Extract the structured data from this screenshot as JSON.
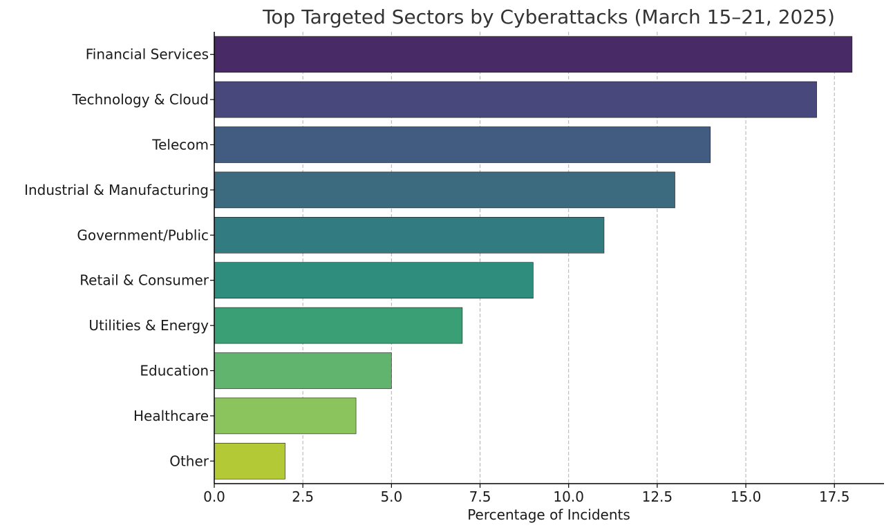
{
  "chart_data": {
    "type": "bar",
    "orientation": "horizontal",
    "title": "Top Targeted Sectors by Cyberattacks (March 15–21, 2025)",
    "xlabel": "Percentage of Incidents",
    "ylabel": "",
    "xlim": [
      0,
      18.9
    ],
    "xticks": [
      "0.0",
      "2.5",
      "5.0",
      "7.5",
      "10.0",
      "12.5",
      "15.0",
      "17.5"
    ],
    "grid": "vertical-dashed",
    "categories": [
      "Financial Services",
      "Technology & Cloud",
      "Telecom",
      "Industrial & Manufacturing",
      "Government/Public",
      "Retail & Consumer",
      "Utilities & Energy",
      "Education",
      "Healthcare",
      "Other"
    ],
    "values": [
      18,
      17,
      14,
      13,
      11,
      9,
      7,
      5,
      4,
      2
    ],
    "colors": [
      "#472a66",
      "#48487d",
      "#425b81",
      "#3c6b80",
      "#327b80",
      "#2f8d7e",
      "#3b9f76",
      "#60b46e",
      "#8bc35c",
      "#b4c936"
    ]
  }
}
